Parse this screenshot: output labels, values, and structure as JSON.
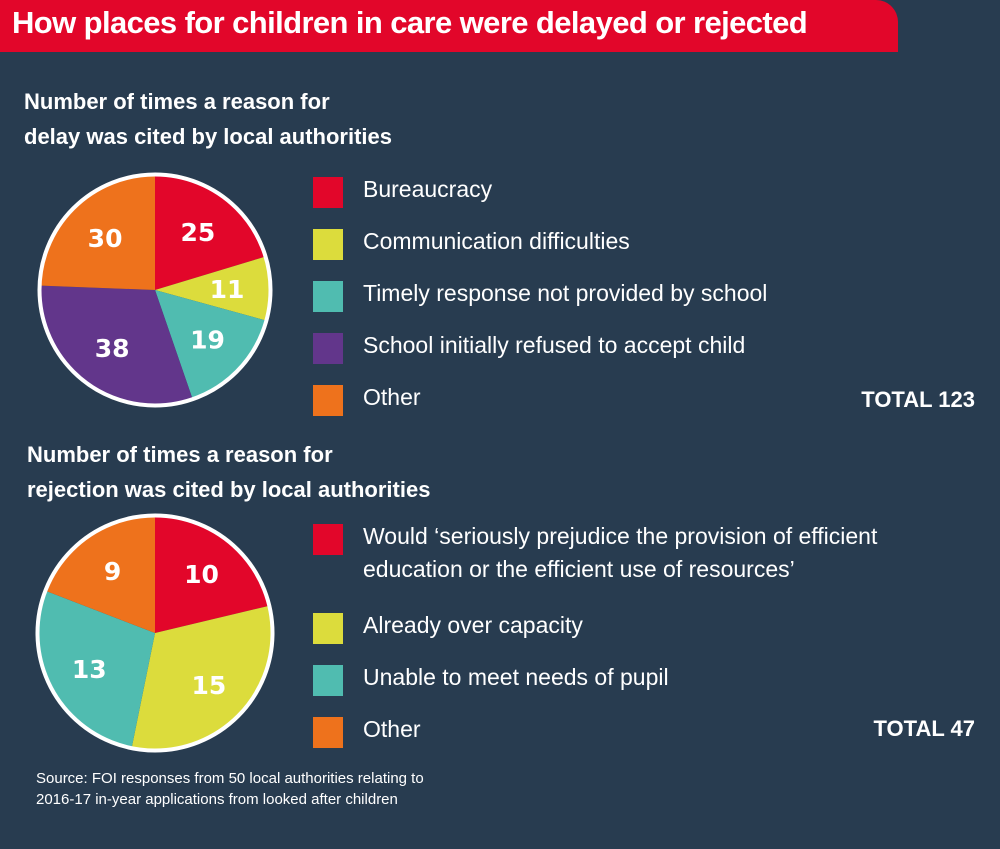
{
  "title": "How places for children in care were delayed or rejected",
  "colors": {
    "background": "#283c50",
    "banner": "#e2062a",
    "red": "#e2062a",
    "yellow": "#dcdc3c",
    "teal": "#50bcb0",
    "purple": "#62368b",
    "orange": "#ee721c"
  },
  "chart_data": [
    {
      "type": "pie",
      "title": "Number of times a reason for\ndelay was cited by local authorities",
      "categories": [
        "Bureaucracy",
        "Communication difficulties",
        "Timely response not provided by school",
        "School initially refused to accept child",
        "Other"
      ],
      "values": [
        25,
        11,
        19,
        38,
        30
      ],
      "colors": [
        "#e2062a",
        "#dcdc3c",
        "#50bcb0",
        "#62368b",
        "#ee721c"
      ],
      "total_label": "TOTAL 123",
      "legend_position": "right"
    },
    {
      "type": "pie",
      "title": "Number of times a reason for\nrejection was cited by local authorities",
      "categories": [
        "Would ‘seriously prejudice the provision of efficient education or the efficient use of resources’",
        "Already over capacity",
        "Unable to meet needs of pupil",
        "Other"
      ],
      "legend_labels": [
        "Would ‘seriously prejudice the provision of efficient\neducation or the efficient use of resources’",
        "Already over capacity",
        "Unable to meet needs of pupil",
        "Other"
      ],
      "values": [
        10,
        15,
        13,
        9
      ],
      "colors": [
        "#e2062a",
        "#dcdc3c",
        "#50bcb0",
        "#ee721c"
      ],
      "total_label": "TOTAL 47",
      "legend_position": "right"
    }
  ],
  "source": "Source: FOI responses from 50 local authorities relating to\n2016-17 in-year applications from looked after children"
}
